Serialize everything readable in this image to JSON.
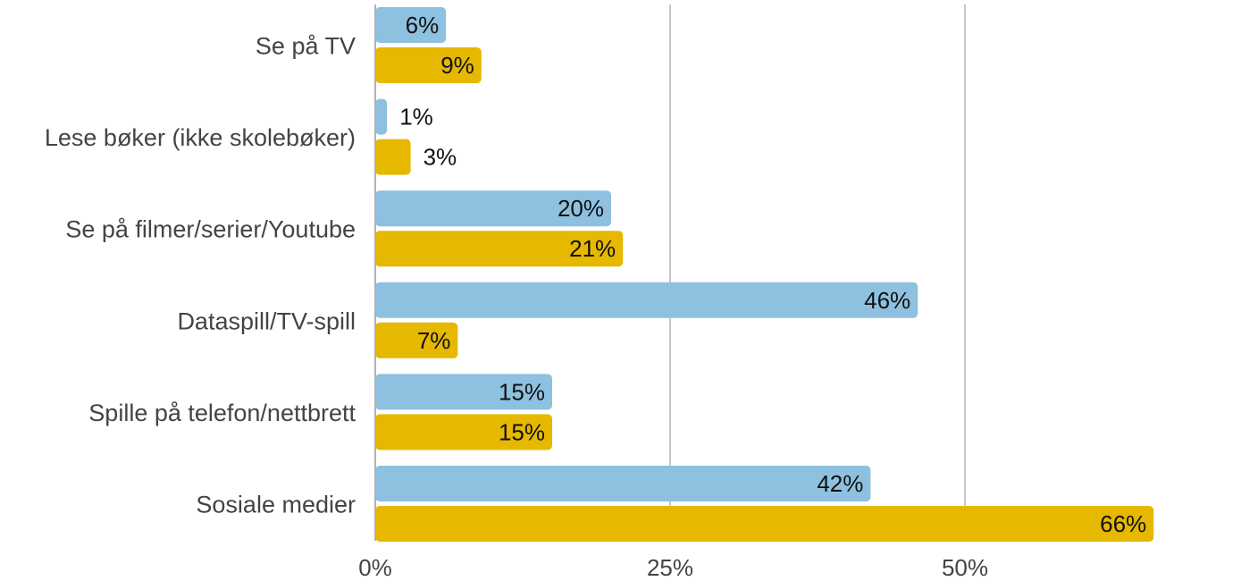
{
  "chart_data": {
    "type": "bar",
    "orientation": "horizontal",
    "categories": [
      "Se på TV",
      "Lese bøker (ikke skolebøker)",
      "Se på filmer/serier/Youtube",
      "Dataspill/TV-spill",
      "Spille på telefon/nettbrett",
      "Sosiale medier"
    ],
    "series": [
      {
        "values": [
          6,
          1,
          20,
          46,
          15,
          42
        ],
        "color": "#8ec1df"
      },
      {
        "values": [
          9,
          3,
          21,
          7,
          15,
          66
        ],
        "color": "#e6b800"
      }
    ],
    "data_labels": [
      [
        "6%",
        "1%",
        "20%",
        "46%",
        "15%",
        "42%"
      ],
      [
        "9%",
        "3%",
        "21%",
        "7%",
        "15%",
        "66%"
      ]
    ],
    "xlim": [
      0,
      66
    ],
    "x_ticks": [
      0,
      25,
      50
    ],
    "x_tick_labels": [
      "0%",
      "25%",
      "50%"
    ],
    "grid": "vertical",
    "legend": "none",
    "title": "",
    "xlabel": "",
    "ylabel": ""
  }
}
